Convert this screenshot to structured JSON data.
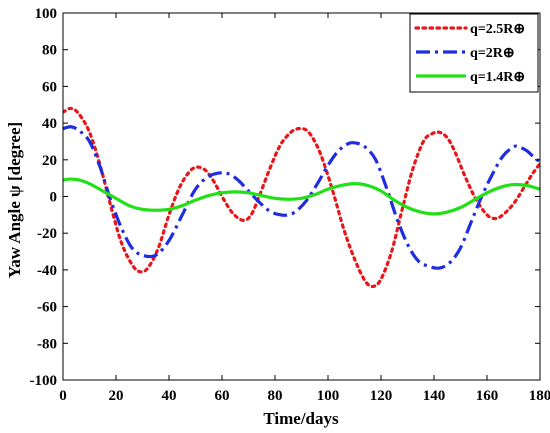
{
  "chart_data": {
    "type": "line",
    "xlabel": "Time/days",
    "ylabel": "Yaw Angle ψ [degree]",
    "xlim": [
      0,
      180
    ],
    "ylim": [
      -100,
      100
    ],
    "x_ticks": [
      0,
      20,
      40,
      60,
      80,
      100,
      120,
      140,
      160,
      180
    ],
    "y_ticks": [
      -100,
      -80,
      -60,
      -40,
      -20,
      0,
      20,
      40,
      60,
      80,
      100
    ],
    "grid": false,
    "legend_position": "top-right",
    "series": [
      {
        "name": "q=2.5R⊕",
        "color": "#e8161b",
        "style": "dotted",
        "x": [
          0,
          3,
          6,
          10,
          14,
          18,
          22,
          26,
          29,
          32,
          36,
          40,
          44,
          48,
          51,
          54,
          57,
          60,
          64,
          68,
          71,
          74,
          78,
          82,
          86,
          89,
          92,
          95,
          98,
          102,
          106,
          110,
          114,
          117,
          120,
          124,
          128,
          132,
          136,
          139,
          142,
          145,
          148,
          152,
          156,
          160,
          163,
          166,
          170,
          174,
          177,
          180
        ],
        "y": [
          46,
          48,
          45,
          35,
          17,
          -5,
          -25,
          -37,
          -41,
          -39,
          -28,
          -10,
          5,
          14,
          16,
          14,
          8,
          0,
          -9,
          -13,
          -10,
          0,
          15,
          28,
          35,
          37,
          36,
          30,
          20,
          2,
          -18,
          -34,
          -46,
          -49,
          -45,
          -30,
          -7,
          15,
          30,
          34,
          35,
          32,
          24,
          10,
          -2,
          -10,
          -12,
          -10,
          -4,
          5,
          12,
          18
        ]
      },
      {
        "name": "q=2R⊕",
        "color": "#1f2de0",
        "style": "dashdot",
        "x": [
          0,
          3,
          6,
          10,
          14,
          18,
          22,
          26,
          30,
          35,
          40,
          45,
          50,
          55,
          60,
          63,
          66,
          70,
          74,
          78,
          82,
          85,
          88,
          92,
          96,
          100,
          104,
          108,
          111,
          114,
          118,
          122,
          126,
          130,
          134,
          138,
          142,
          146,
          150,
          154,
          158,
          162,
          166,
          170,
          172,
          175,
          178,
          180
        ],
        "y": [
          37,
          38,
          36,
          30,
          16,
          -2,
          -17,
          -28,
          -32,
          -32,
          -24,
          -10,
          4,
          11,
          13,
          12,
          9,
          3,
          -3,
          -8,
          -10,
          -10,
          -8,
          -2,
          7,
          17,
          25,
          29,
          29,
          27,
          20,
          5,
          -12,
          -26,
          -35,
          -38,
          -39,
          -36,
          -28,
          -14,
          0,
          12,
          22,
          27,
          27,
          25,
          21,
          19
        ]
      },
      {
        "name": "q=1.4R⊕",
        "color": "#22e016",
        "style": "solid",
        "x": [
          0,
          3,
          6,
          10,
          15,
          20,
          25,
          30,
          35,
          40,
          45,
          50,
          55,
          60,
          65,
          70,
          75,
          80,
          85,
          90,
          95,
          100,
          105,
          110,
          115,
          120,
          125,
          130,
          135,
          140,
          145,
          150,
          155,
          160,
          165,
          170,
          175,
          180
        ],
        "y": [
          9,
          9.5,
          9,
          7,
          3,
          -1,
          -5,
          -7,
          -7.5,
          -7,
          -5,
          -2,
          0.5,
          2,
          2.5,
          2,
          0.5,
          -1,
          -1.5,
          -1,
          1,
          4,
          6,
          7,
          6,
          3,
          -2,
          -6,
          -8.5,
          -9.5,
          -8.5,
          -6,
          -2,
          2,
          5,
          6.5,
          6,
          4
        ]
      }
    ]
  }
}
